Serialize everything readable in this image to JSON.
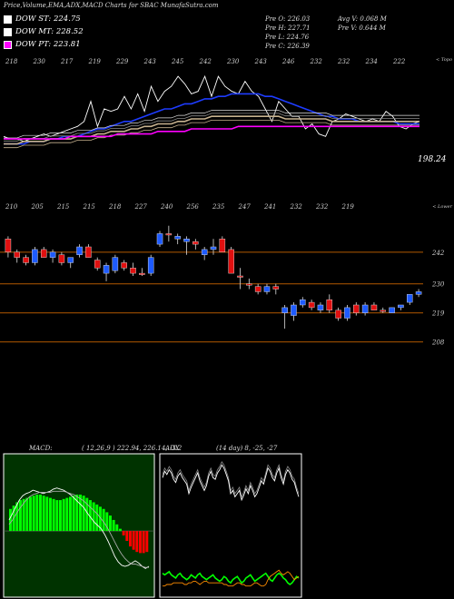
{
  "title": "Price,Volume,EMA,ADX,MACD Charts for SBAC MunafaSutra.com",
  "legend": [
    {
      "label": "DOW ST: 224.75",
      "color": "#ffffff"
    },
    {
      "label": "DOW MT: 228.52",
      "color": "#ffffff"
    },
    {
      "label": "DOW PT: 223.81",
      "color": "#ff00ff"
    }
  ],
  "stats_col1": [
    "Pre   O: 226.03",
    "Pre   H: 227.71",
    "Pre   L: 224.76",
    "Pre   C: 226.39"
  ],
  "stats_col2": [
    "Avg V: 0.068  M",
    "Pre   V: 0.644  M"
  ],
  "chart_data": [
    {
      "type": "line",
      "name": "ema-panel",
      "top_tick_labels": [
        "218",
        "230",
        "217",
        "219",
        "229",
        "243",
        "245",
        "242",
        "230",
        "243",
        "246",
        "232",
        "232",
        "234",
        "222"
      ],
      "top_right_label": "< Topo",
      "last_value_label": "198.24",
      "series": [
        {
          "color": "#ffffff",
          "values": [
            208,
            207,
            207,
            206,
            207,
            208,
            209,
            208,
            209,
            210,
            211,
            212,
            214,
            222,
            212,
            219,
            218,
            219,
            224,
            219,
            225,
            218,
            228,
            222,
            226,
            228,
            232,
            229,
            225,
            226,
            232,
            224,
            232,
            228,
            226,
            225,
            230,
            226,
            224,
            219,
            214,
            222,
            219,
            216,
            216,
            211,
            213,
            209,
            208,
            214,
            215,
            217,
            216,
            215,
            214,
            215,
            214,
            218,
            216,
            212,
            211,
            213,
            214
          ]
        },
        {
          "color": "#1e3cff",
          "values": [
            205,
            205,
            205,
            205,
            206,
            206,
            206,
            207,
            207,
            208,
            208,
            208,
            209,
            210,
            211,
            211,
            212,
            213,
            214,
            214,
            215,
            216,
            217,
            218,
            219,
            219,
            220,
            221,
            221,
            222,
            223,
            223,
            224,
            224,
            225,
            225,
            225,
            225,
            225,
            224,
            224,
            223,
            222,
            221,
            220,
            219,
            218,
            217,
            216,
            216,
            215,
            215,
            215,
            214,
            214,
            214,
            214,
            214,
            214,
            213,
            213,
            213,
            213
          ]
        },
        {
          "color": "#c7b28f",
          "values": [
            205,
            205,
            205,
            206,
            206,
            206,
            206,
            207,
            207,
            207,
            207,
            208,
            208,
            208,
            209,
            209,
            210,
            210,
            210,
            211,
            211,
            212,
            212,
            213,
            213,
            213,
            214,
            214,
            215,
            215,
            215,
            216,
            216,
            216,
            216,
            216,
            216,
            216,
            216,
            216,
            216,
            216,
            215,
            215,
            215,
            215,
            215,
            215,
            215,
            214,
            214,
            214,
            214,
            214,
            214,
            214,
            214,
            214,
            214,
            214,
            214,
            214,
            214
          ]
        },
        {
          "color": "#ff00ff",
          "values": [
            207,
            207,
            207,
            207,
            207,
            207,
            207,
            207,
            207,
            207,
            208,
            208,
            208,
            208,
            208,
            208,
            208,
            209,
            209,
            209,
            209,
            209,
            209,
            210,
            210,
            210,
            210,
            210,
            211,
            211,
            211,
            211,
            211,
            211,
            211,
            212,
            212,
            212,
            212,
            212,
            212,
            212,
            212,
            212,
            212,
            212,
            212,
            212,
            212,
            212,
            212,
            212,
            212,
            212,
            212,
            212,
            212,
            212,
            212,
            212,
            212,
            212,
            212
          ]
        }
      ],
      "ylim": [
        190,
        240
      ]
    },
    {
      "type": "candlestick",
      "name": "price-panel",
      "top_tick_labels": [
        "210",
        "205",
        "215",
        "215",
        "218",
        "227",
        "240",
        "256",
        "235",
        "247",
        "241",
        "232",
        "232",
        "219"
      ],
      "top_right_label": "< Lower",
      "price_levels": [
        242,
        230,
        219,
        208
      ],
      "level_line_color": "#b35900",
      "ylim": [
        200,
        255
      ],
      "candles": [
        {
          "o": 247,
          "h": 248,
          "l": 240,
          "c": 242,
          "up": false
        },
        {
          "o": 242,
          "h": 243,
          "l": 238,
          "c": 240,
          "up": false
        },
        {
          "o": 240,
          "h": 241,
          "l": 237,
          "c": 238,
          "up": false
        },
        {
          "o": 238,
          "h": 244,
          "l": 237,
          "c": 243,
          "up": true
        },
        {
          "o": 243,
          "h": 244,
          "l": 240,
          "c": 240,
          "up": false
        },
        {
          "o": 240,
          "h": 243,
          "l": 238,
          "c": 242,
          "up": true
        },
        {
          "o": 241,
          "h": 242,
          "l": 237,
          "c": 238,
          "up": false
        },
        {
          "o": 238,
          "h": 240,
          "l": 236,
          "c": 240,
          "up": true
        },
        {
          "o": 241,
          "h": 245,
          "l": 240,
          "c": 244,
          "up": true
        },
        {
          "o": 244,
          "h": 245,
          "l": 240,
          "c": 240,
          "up": false
        },
        {
          "o": 239,
          "h": 240,
          "l": 235,
          "c": 236,
          "up": false
        },
        {
          "o": 234,
          "h": 238,
          "l": 231,
          "c": 237,
          "up": true
        },
        {
          "o": 235,
          "h": 241,
          "l": 234,
          "c": 240,
          "up": true
        },
        {
          "o": 238,
          "h": 239,
          "l": 235,
          "c": 236,
          "up": false
        },
        {
          "o": 236,
          "h": 238,
          "l": 233,
          "c": 234,
          "up": false
        },
        {
          "o": 234,
          "h": 236,
          "l": 233,
          "c": 234,
          "up": false
        },
        {
          "o": 234,
          "h": 241,
          "l": 233,
          "c": 240,
          "up": true
        },
        {
          "o": 245,
          "h": 250,
          "l": 244,
          "c": 249,
          "up": true
        },
        {
          "o": 249,
          "h": 252,
          "l": 246,
          "c": 249,
          "up": false
        },
        {
          "o": 247,
          "h": 249,
          "l": 245,
          "c": 248,
          "up": true
        },
        {
          "o": 246,
          "h": 248,
          "l": 241,
          "c": 247,
          "up": true
        },
        {
          "o": 246,
          "h": 247,
          "l": 243,
          "c": 245,
          "up": false
        },
        {
          "o": 241,
          "h": 244,
          "l": 239,
          "c": 243,
          "up": true
        },
        {
          "o": 243,
          "h": 247,
          "l": 241,
          "c": 244,
          "up": true
        },
        {
          "o": 247,
          "h": 248,
          "l": 242,
          "c": 242,
          "up": false
        },
        {
          "o": 243,
          "h": 244,
          "l": 234,
          "c": 234,
          "up": false
        },
        {
          "o": 233,
          "h": 236,
          "l": 228,
          "c": 233,
          "up": false
        },
        {
          "o": 230,
          "h": 232,
          "l": 228,
          "c": 230,
          "up": false
        },
        {
          "o": 229,
          "h": 230,
          "l": 226,
          "c": 227,
          "up": false
        },
        {
          "o": 227,
          "h": 230,
          "l": 226,
          "c": 229,
          "up": true
        },
        {
          "o": 229,
          "h": 230,
          "l": 226,
          "c": 228,
          "up": false
        },
        {
          "o": 221,
          "h": 222,
          "l": 213,
          "c": 219,
          "up": true
        },
        {
          "o": 218,
          "h": 223,
          "l": 216,
          "c": 222,
          "up": true
        },
        {
          "o": 222,
          "h": 225,
          "l": 221,
          "c": 224,
          "up": true
        },
        {
          "o": 223,
          "h": 224,
          "l": 220,
          "c": 221,
          "up": false
        },
        {
          "o": 220,
          "h": 223,
          "l": 219,
          "c": 222,
          "up": true
        },
        {
          "o": 224,
          "h": 226,
          "l": 219,
          "c": 220,
          "up": false
        },
        {
          "o": 220,
          "h": 221,
          "l": 216,
          "c": 217,
          "up": false
        },
        {
          "o": 217,
          "h": 222,
          "l": 216,
          "c": 221,
          "up": true
        },
        {
          "o": 222,
          "h": 223,
          "l": 218,
          "c": 219,
          "up": false
        },
        {
          "o": 219,
          "h": 223,
          "l": 218,
          "c": 222,
          "up": true
        },
        {
          "o": 222,
          "h": 223,
          "l": 220,
          "c": 220,
          "up": false
        },
        {
          "o": 220,
          "h": 221,
          "l": 219,
          "c": 220,
          "up": false
        },
        {
          "o": 219,
          "h": 221,
          "l": 219,
          "c": 221,
          "up": true
        },
        {
          "o": 221,
          "h": 222,
          "l": 220,
          "c": 222,
          "up": true
        },
        {
          "o": 223,
          "h": 226,
          "l": 222,
          "c": 226,
          "up": true
        },
        {
          "o": 226,
          "h": 228,
          "l": 225,
          "c": 227,
          "up": true
        }
      ]
    },
    {
      "type": "bar",
      "name": "macd-panel",
      "label": "MACD:",
      "params": "( 12,26,9 ) 222.94,  226.14,  -3.2",
      "up_color": "#00ff00",
      "down_color": "#ff0000",
      "histogram": [
        2.0,
        2.3,
        2.6,
        2.8,
        2.9,
        3.0,
        3.1,
        3.2,
        3.3,
        3.3,
        3.2,
        3.1,
        3.0,
        2.9,
        2.8,
        2.8,
        2.9,
        3.0,
        3.1,
        3.2,
        3.3,
        3.3,
        3.2,
        3.0,
        2.8,
        2.6,
        2.4,
        2.2,
        2.0,
        1.7,
        1.4,
        1.0,
        0.6,
        0.2,
        -0.4,
        -0.9,
        -1.4,
        -1.7,
        -1.9,
        -2.0,
        -2.0,
        -1.9
      ],
      "macd_line": [
        1.0,
        1.6,
        2.2,
        2.8,
        3.2,
        3.4,
        3.5,
        3.7,
        3.6,
        3.5,
        3.4,
        3.5,
        3.6,
        3.8,
        3.9,
        3.8,
        3.7,
        3.5,
        3.3,
        3.0,
        2.7,
        2.4,
        2.1,
        1.6,
        1.2,
        0.8,
        0.5,
        0.2,
        -0.3,
        -0.9,
        -1.6,
        -2.3,
        -2.8,
        -3.1,
        -3.2,
        -3.1,
        -2.9,
        -2.7,
        -2.9,
        -3.2,
        -3.4,
        -3.2
      ],
      "signal_line": [
        0.6,
        1.0,
        1.5,
        2.0,
        2.4,
        2.8,
        3.1,
        3.3,
        3.4,
        3.5,
        3.5,
        3.5,
        3.5,
        3.6,
        3.6,
        3.6,
        3.6,
        3.5,
        3.4,
        3.3,
        3.1,
        2.9,
        2.7,
        2.4,
        2.1,
        1.8,
        1.5,
        1.1,
        0.7,
        0.2,
        -0.4,
        -1.0,
        -1.6,
        -2.1,
        -2.5,
        -2.8,
        -3.0,
        -3.0,
        -3.1,
        -3.2,
        -3.3,
        -3.3
      ],
      "ylim": [
        -6,
        7
      ]
    },
    {
      "type": "line",
      "name": "adx-panel",
      "label": "ADX",
      "params": "(14  day) 8,  -25,  -27",
      "series": [
        {
          "name": "ADX",
          "color": "#ffffff",
          "values": [
            30,
            34,
            32,
            35,
            33,
            29,
            27,
            31,
            33,
            30,
            28,
            26,
            20,
            24,
            27,
            30,
            33,
            28,
            25,
            22,
            25,
            31,
            34,
            30,
            29,
            33,
            35,
            38,
            36,
            32,
            28,
            20,
            22,
            18,
            20,
            22,
            16,
            19,
            23,
            20,
            25,
            22,
            18,
            20,
            24,
            28,
            26,
            31,
            36,
            34,
            30,
            28,
            33,
            36,
            30,
            26,
            32,
            35,
            33,
            29,
            27,
            22,
            18
          ]
        },
        {
          "name": "+DI",
          "color": "#00ff00",
          "values": [
            -30,
            -31,
            -30,
            -29,
            -31,
            -32,
            -33,
            -31,
            -30,
            -32,
            -33,
            -34,
            -33,
            -31,
            -32,
            -33,
            -31,
            -30,
            -32,
            -33,
            -34,
            -33,
            -32,
            -31,
            -33,
            -34,
            -35,
            -34,
            -32,
            -33,
            -35,
            -36,
            -34,
            -33,
            -32,
            -34,
            -36,
            -35,
            -33,
            -32,
            -31,
            -33,
            -35,
            -34,
            -33,
            -32,
            -31,
            -30,
            -32,
            -34,
            -35,
            -33,
            -31,
            -30,
            -31,
            -33,
            -34,
            -36,
            -37,
            -36,
            -34,
            -32,
            -33
          ]
        },
        {
          "name": "-DI",
          "color": "#ff8c00",
          "values": [
            -38,
            -38,
            -37,
            -37,
            -37,
            -36,
            -36,
            -36,
            -36,
            -36,
            -37,
            -37,
            -36,
            -36,
            -35,
            -35,
            -36,
            -37,
            -36,
            -35,
            -35,
            -36,
            -36,
            -36,
            -36,
            -36,
            -36,
            -36,
            -37,
            -37,
            -38,
            -38,
            -38,
            -37,
            -36,
            -36,
            -37,
            -37,
            -38,
            -38,
            -38,
            -37,
            -36,
            -36,
            -37,
            -38,
            -38,
            -37,
            -34,
            -32,
            -31,
            -30,
            -29,
            -28,
            -30,
            -31,
            -30,
            -29,
            -30,
            -32,
            -34,
            -33,
            -32
          ]
        }
      ],
      "ylim": [
        -45,
        45
      ]
    }
  ]
}
